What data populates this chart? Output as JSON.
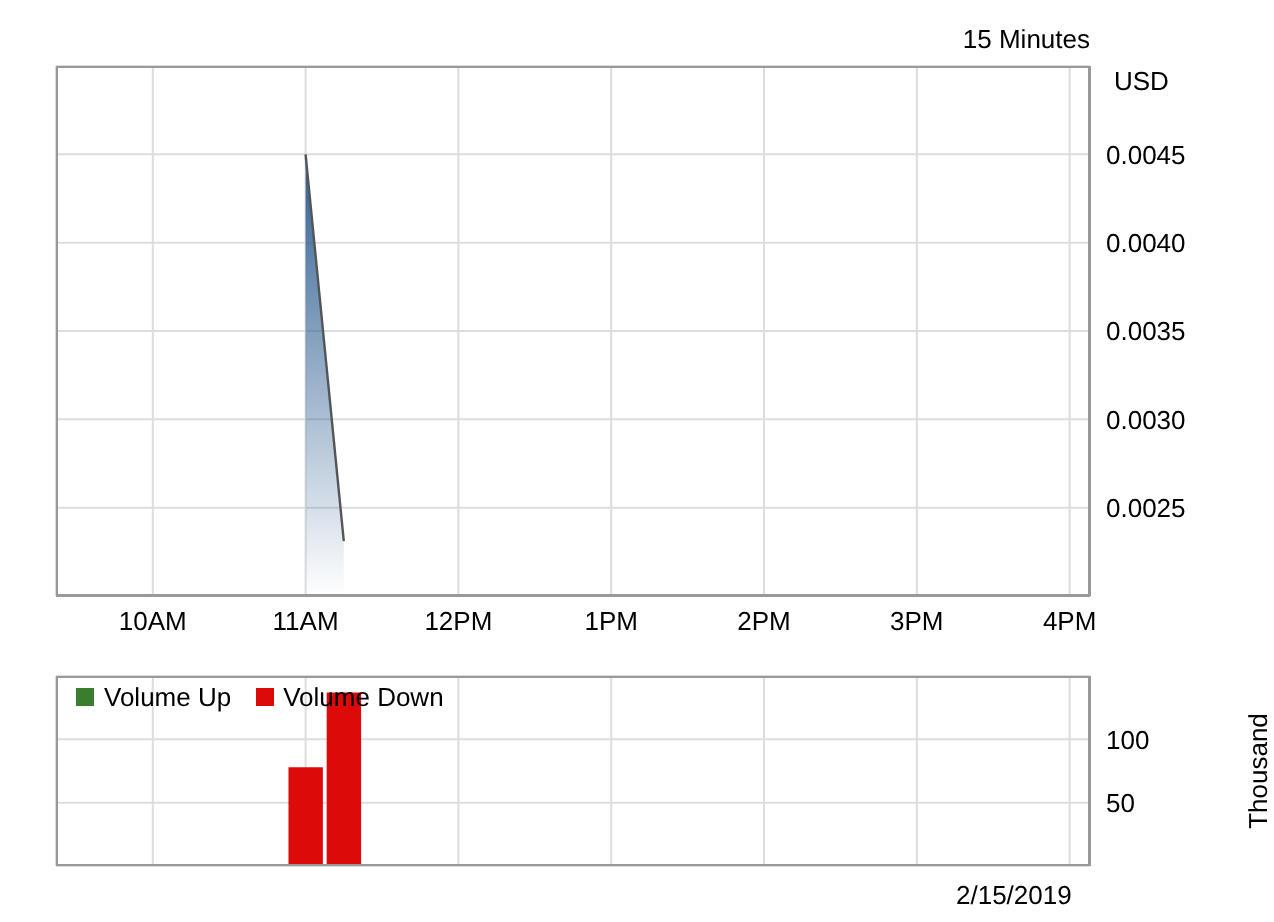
{
  "chart_data": [
    {
      "type": "area",
      "subtitle": "15 Minutes",
      "ylabel": "USD",
      "x": [
        "2019-02-15T11:00",
        "2019-02-15T11:15"
      ],
      "series": [
        {
          "color": "#555555",
          "values": [
            0.0045,
            0.00231
          ]
        }
      ],
      "xlim": [
        "2019-02-15T09:22",
        "2019-02-15T16:08"
      ],
      "xticks": [
        {
          "value": "2019-02-15T10:00",
          "label": "10AM"
        },
        {
          "value": "2019-02-15T11:00",
          "label": "11AM"
        },
        {
          "value": "2019-02-15T12:00",
          "label": "12PM"
        },
        {
          "value": "2019-02-15T13:00",
          "label": "1PM"
        },
        {
          "value": "2019-02-15T14:00",
          "label": "2PM"
        },
        {
          "value": "2019-02-15T15:00",
          "label": "3PM"
        },
        {
          "value": "2019-02-15T16:00",
          "label": "4PM"
        }
      ],
      "ylim": [
        0.002,
        0.005
      ],
      "yticks": [
        {
          "value": 0.0025,
          "label": "0.0025"
        },
        {
          "value": 0.003,
          "label": "0.0030"
        },
        {
          "value": 0.0035,
          "label": "0.0035"
        },
        {
          "value": 0.004,
          "label": "0.0040"
        },
        {
          "value": 0.0045,
          "label": "0.0045"
        }
      ],
      "grid": true
    },
    {
      "type": "bar",
      "ylabel": "Thousand",
      "x": [
        "2019-02-15T11:00",
        "2019-02-15T11:15"
      ],
      "annotations": [
        "2/15/2019"
      ],
      "series": [
        {
          "name": "Volume Up",
          "color": "#3a7d2c",
          "values": [
            null,
            null
          ]
        },
        {
          "name": "Volume Down",
          "color": "#dd0a0a",
          "values": [
            78,
            137
          ]
        }
      ],
      "xlim": [
        "2019-02-15T09:22",
        "2019-02-15T16:08"
      ],
      "xticks": [
        {
          "value": "2019-02-15T10:00",
          "label": null
        },
        {
          "value": "2019-02-15T11:00",
          "label": null
        },
        {
          "value": "2019-02-15T12:00",
          "label": null
        },
        {
          "value": "2019-02-15T13:00",
          "label": null
        },
        {
          "value": "2019-02-15T14:00",
          "label": null
        },
        {
          "value": "2019-02-15T15:00",
          "label": null
        },
        {
          "value": "2019-02-15T16:00",
          "label": null
        }
      ],
      "ylim": [
        0,
        150
      ],
      "yticks": [
        50,
        100
      ],
      "grid": true,
      "legend": "top left",
      "stacked": true,
      "tick_labels": "y"
    }
  ]
}
